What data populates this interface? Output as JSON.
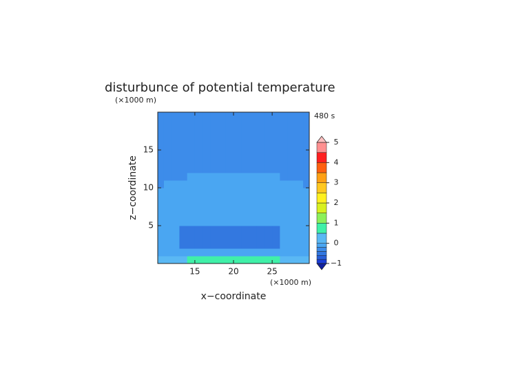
{
  "chart_data": {
    "type": "contour",
    "title": "disturbunce of potential temperature",
    "x_label": "x−coordinate",
    "y_label": "z−coordinate",
    "x_unit": "(×1000 m)",
    "y_unit": "(×1000 m)",
    "time_label": "480 s",
    "xlim": [
      10.2,
      29.8
    ],
    "ylim": [
      0,
      20
    ],
    "xticks": [
      15,
      20,
      25
    ],
    "yticks": [
      5,
      10,
      15
    ],
    "x": [
      10.5,
      11.5,
      12.5,
      13.5,
      14.5,
      15.5,
      16.5,
      17.5,
      18.5,
      19.5,
      20.5,
      21.5,
      22.5,
      23.5,
      24.5,
      25.5,
      26.5,
      27.5,
      28.5,
      29.5
    ],
    "y": [
      0.5,
      1.5,
      2.5,
      3.5,
      4.5,
      5.5,
      6.5,
      7.5,
      8.5,
      9.5,
      10.5,
      11.5,
      12.5,
      13.5,
      14.5,
      15.5,
      16.5,
      17.5,
      18.5,
      19.5
    ],
    "z": [
      [
        0.1,
        0.1,
        0.1,
        0.1,
        0.7,
        0.7,
        0.7,
        0.7,
        0.7,
        0.7,
        0.7,
        0.7,
        0.7,
        0.7,
        0.7,
        0.7,
        0.1,
        0.1,
        0.1,
        0.1
      ],
      [
        -0.1,
        -0.1,
        -0.1,
        -0.1,
        -0.1,
        -0.1,
        -0.1,
        -0.1,
        -0.1,
        -0.1,
        -0.1,
        -0.1,
        -0.1,
        -0.1,
        -0.1,
        -0.1,
        -0.1,
        -0.1,
        -0.1,
        -0.1
      ],
      [
        -0.1,
        -0.1,
        -0.1,
        -0.5,
        -0.5,
        -0.5,
        -0.5,
        -0.5,
        -0.5,
        -0.5,
        -0.5,
        -0.5,
        -0.5,
        -0.5,
        -0.5,
        -0.5,
        -0.1,
        -0.1,
        -0.1,
        -0.1
      ],
      [
        -0.1,
        -0.1,
        -0.1,
        -0.5,
        -0.5,
        -0.5,
        -0.5,
        -0.5,
        -0.5,
        -0.5,
        -0.5,
        -0.5,
        -0.5,
        -0.5,
        -0.5,
        -0.5,
        -0.1,
        -0.1,
        -0.1,
        -0.1
      ],
      [
        -0.1,
        -0.1,
        -0.1,
        -0.5,
        -0.5,
        -0.5,
        -0.5,
        -0.5,
        -0.5,
        -0.5,
        -0.5,
        -0.5,
        -0.5,
        -0.5,
        -0.5,
        -0.5,
        -0.1,
        -0.1,
        -0.1,
        -0.1
      ],
      [
        -0.1,
        -0.1,
        -0.1,
        -0.1,
        -0.1,
        -0.1,
        -0.1,
        -0.1,
        -0.1,
        -0.1,
        -0.1,
        -0.1,
        -0.1,
        -0.1,
        -0.1,
        -0.1,
        -0.1,
        -0.1,
        -0.1,
        -0.1
      ],
      [
        -0.1,
        -0.1,
        -0.1,
        -0.1,
        -0.1,
        -0.1,
        -0.1,
        -0.1,
        -0.1,
        -0.1,
        -0.1,
        -0.1,
        -0.1,
        -0.1,
        -0.1,
        -0.1,
        -0.1,
        -0.1,
        -0.1,
        -0.1
      ],
      [
        -0.1,
        -0.1,
        -0.1,
        -0.1,
        -0.1,
        -0.1,
        -0.1,
        -0.1,
        -0.1,
        -0.1,
        -0.1,
        -0.1,
        -0.1,
        -0.1,
        -0.1,
        -0.1,
        -0.1,
        -0.1,
        -0.1,
        -0.1
      ],
      [
        -0.1,
        -0.1,
        -0.1,
        -0.1,
        -0.1,
        -0.1,
        -0.1,
        -0.1,
        -0.1,
        -0.1,
        -0.1,
        -0.1,
        -0.1,
        -0.1,
        -0.1,
        -0.1,
        -0.1,
        -0.1,
        -0.1,
        -0.1
      ],
      [
        -0.1,
        -0.1,
        -0.1,
        -0.1,
        -0.1,
        -0.1,
        -0.1,
        -0.1,
        -0.1,
        -0.1,
        -0.1,
        -0.1,
        -0.1,
        -0.1,
        -0.1,
        -0.1,
        -0.1,
        -0.1,
        -0.1,
        -0.1
      ],
      [
        -0.3,
        -0.1,
        -0.1,
        -0.1,
        -0.1,
        -0.1,
        -0.1,
        -0.1,
        -0.1,
        -0.1,
        -0.1,
        -0.1,
        -0.1,
        -0.1,
        -0.1,
        -0.1,
        -0.1,
        -0.1,
        -0.1,
        -0.3
      ],
      [
        -0.3,
        -0.3,
        -0.3,
        -0.3,
        -0.1,
        -0.1,
        -0.1,
        -0.1,
        -0.1,
        -0.1,
        -0.1,
        -0.1,
        -0.1,
        -0.1,
        -0.1,
        -0.1,
        -0.3,
        -0.3,
        -0.3,
        -0.3
      ],
      [
        -0.3,
        -0.3,
        -0.3,
        -0.3,
        -0.3,
        -0.3,
        -0.3,
        -0.3,
        -0.3,
        -0.3,
        -0.3,
        -0.3,
        -0.3,
        -0.3,
        -0.3,
        -0.3,
        -0.3,
        -0.3,
        -0.3,
        -0.3
      ],
      [
        -0.3,
        -0.3,
        -0.3,
        -0.3,
        -0.3,
        -0.3,
        -0.3,
        -0.3,
        -0.3,
        -0.3,
        -0.3,
        -0.3,
        -0.3,
        -0.3,
        -0.3,
        -0.3,
        -0.3,
        -0.3,
        -0.3,
        -0.3
      ],
      [
        -0.3,
        -0.3,
        -0.3,
        -0.3,
        -0.3,
        -0.3,
        -0.3,
        -0.3,
        -0.3,
        -0.3,
        -0.3,
        -0.3,
        -0.3,
        -0.3,
        -0.3,
        -0.3,
        -0.3,
        -0.3,
        -0.3,
        -0.3
      ],
      [
        -0.3,
        -0.3,
        -0.3,
        -0.3,
        -0.3,
        -0.3,
        -0.3,
        -0.3,
        -0.3,
        -0.3,
        -0.3,
        -0.3,
        -0.3,
        -0.3,
        -0.3,
        -0.3,
        -0.3,
        -0.3,
        -0.3,
        -0.3
      ],
      [
        -0.3,
        -0.3,
        -0.3,
        -0.3,
        -0.3,
        -0.3,
        -0.3,
        -0.3,
        -0.3,
        -0.3,
        -0.3,
        -0.3,
        -0.3,
        -0.3,
        -0.3,
        -0.3,
        -0.3,
        -0.3,
        -0.3,
        -0.3
      ],
      [
        -0.3,
        -0.3,
        -0.3,
        -0.3,
        -0.3,
        -0.3,
        -0.3,
        -0.3,
        -0.3,
        -0.3,
        -0.3,
        -0.3,
        -0.3,
        -0.3,
        -0.3,
        -0.3,
        -0.3,
        -0.3,
        -0.3,
        -0.3
      ],
      [
        -0.3,
        -0.3,
        -0.3,
        -0.3,
        -0.3,
        -0.3,
        -0.3,
        -0.3,
        -0.3,
        -0.3,
        -0.3,
        -0.3,
        -0.3,
        -0.3,
        -0.3,
        -0.3,
        -0.3,
        -0.3,
        -0.3,
        -0.3
      ],
      [
        -0.3,
        -0.3,
        -0.3,
        -0.3,
        -0.3,
        -0.3,
        -0.3,
        -0.3,
        -0.3,
        -0.3,
        -0.3,
        -0.3,
        -0.3,
        -0.3,
        -0.3,
        -0.3,
        -0.3,
        -0.3,
        -0.3,
        -0.3
      ]
    ],
    "levels": [
      -1,
      -0.8,
      -0.6,
      -0.4,
      -0.2,
      0,
      0.5,
      1,
      1.5,
      2,
      2.5,
      3,
      3.5,
      4,
      4.5,
      5
    ],
    "colors": [
      "#1a3ed8",
      "#2860d8",
      "#3378e0",
      "#3d8cea",
      "#4aa6f2",
      "#5ab8f4",
      "#40f0a8",
      "#8cf05a",
      "#d8f020",
      "#fff020",
      "#ffc820",
      "#ffa014",
      "#ff6010",
      "#ff2020",
      "#ff9090"
    ],
    "under_color": "#1020a0",
    "over_color": "#ffc0c0",
    "colorbar_ticks": [
      {
        "value": -1,
        "label": "−1"
      },
      0,
      1,
      2,
      3,
      4,
      5
    ]
  }
}
